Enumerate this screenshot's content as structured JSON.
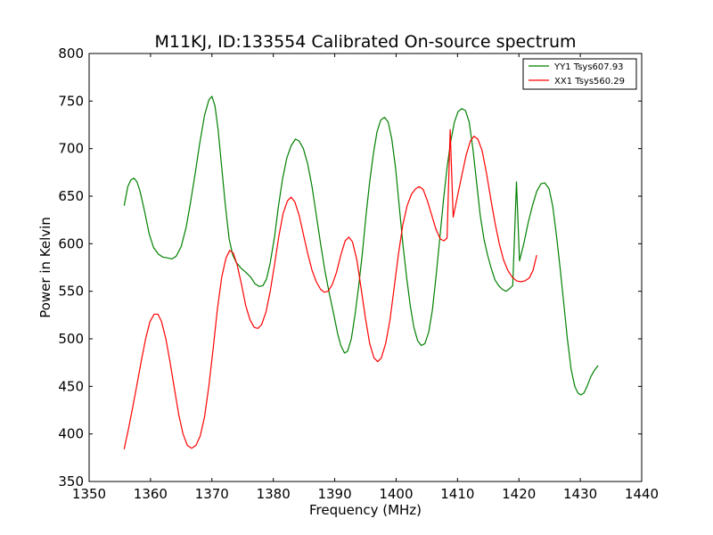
{
  "chart_data": {
    "type": "line",
    "title": "M11KJ, ID:133554 Calibrated On-source spectrum",
    "xlabel": "Frequency (MHz)",
    "ylabel": "Power in Kelvin",
    "xlim": [
      1350,
      1440
    ],
    "ylim": [
      350,
      800
    ],
    "xticks": [
      1350,
      1360,
      1370,
      1380,
      1390,
      1400,
      1410,
      1420,
      1430,
      1440
    ],
    "yticks": [
      350,
      400,
      450,
      500,
      550,
      600,
      650,
      700,
      750,
      800
    ],
    "grid": false,
    "legend_position": "top-right",
    "series": [
      {
        "name": "YY1 Tsys607.93",
        "color": "#008000",
        "points": [
          [
            1355.7,
            640
          ],
          [
            1356.3,
            660
          ],
          [
            1356.8,
            667
          ],
          [
            1357.3,
            669
          ],
          [
            1357.8,
            665
          ],
          [
            1358.3,
            655
          ],
          [
            1359.0,
            635
          ],
          [
            1359.8,
            610
          ],
          [
            1360.5,
            596
          ],
          [
            1361.3,
            589
          ],
          [
            1362.0,
            586
          ],
          [
            1362.8,
            585
          ],
          [
            1363.5,
            584
          ],
          [
            1364.2,
            587
          ],
          [
            1365.0,
            597
          ],
          [
            1365.8,
            617
          ],
          [
            1366.5,
            643
          ],
          [
            1367.3,
            675
          ],
          [
            1368.0,
            705
          ],
          [
            1368.8,
            735
          ],
          [
            1369.5,
            751
          ],
          [
            1370.0,
            755
          ],
          [
            1370.5,
            745
          ],
          [
            1371.0,
            720
          ],
          [
            1371.6,
            680
          ],
          [
            1372.2,
            640
          ],
          [
            1372.8,
            605
          ],
          [
            1373.4,
            588
          ],
          [
            1374.0,
            580
          ],
          [
            1374.8,
            574
          ],
          [
            1375.5,
            570
          ],
          [
            1376.3,
            565
          ],
          [
            1377.0,
            558
          ],
          [
            1377.7,
            555
          ],
          [
            1378.3,
            556
          ],
          [
            1378.9,
            563
          ],
          [
            1379.5,
            580
          ],
          [
            1380.2,
            607
          ],
          [
            1380.8,
            638
          ],
          [
            1381.5,
            668
          ],
          [
            1382.2,
            690
          ],
          [
            1382.9,
            703
          ],
          [
            1383.6,
            710
          ],
          [
            1384.2,
            708
          ],
          [
            1384.9,
            700
          ],
          [
            1385.6,
            684
          ],
          [
            1386.3,
            660
          ],
          [
            1387.0,
            630
          ],
          [
            1387.7,
            600
          ],
          [
            1388.4,
            572
          ],
          [
            1389.1,
            548
          ],
          [
            1389.8,
            527
          ],
          [
            1390.5,
            505
          ],
          [
            1391.0,
            493
          ],
          [
            1391.6,
            485
          ],
          [
            1392.1,
            487
          ],
          [
            1392.7,
            500
          ],
          [
            1393.3,
            525
          ],
          [
            1393.9,
            555
          ],
          [
            1394.5,
            590
          ],
          [
            1395.1,
            630
          ],
          [
            1395.7,
            665
          ],
          [
            1396.3,
            695
          ],
          [
            1396.9,
            718
          ],
          [
            1397.5,
            730
          ],
          [
            1398.1,
            733
          ],
          [
            1398.7,
            728
          ],
          [
            1399.3,
            710
          ],
          [
            1399.9,
            680
          ],
          [
            1400.5,
            640
          ],
          [
            1401.1,
            600
          ],
          [
            1401.7,
            565
          ],
          [
            1402.3,
            535
          ],
          [
            1402.9,
            512
          ],
          [
            1403.5,
            498
          ],
          [
            1404.1,
            493
          ],
          [
            1404.7,
            495
          ],
          [
            1405.3,
            507
          ],
          [
            1405.9,
            530
          ],
          [
            1406.5,
            565
          ],
          [
            1407.1,
            605
          ],
          [
            1407.7,
            645
          ],
          [
            1408.3,
            680
          ],
          [
            1408.9,
            708
          ],
          [
            1409.5,
            728
          ],
          [
            1410.1,
            739
          ],
          [
            1410.7,
            742
          ],
          [
            1411.3,
            740
          ],
          [
            1411.9,
            728
          ],
          [
            1412.5,
            700
          ],
          [
            1413.1,
            665
          ],
          [
            1413.7,
            630
          ],
          [
            1414.3,
            605
          ],
          [
            1414.9,
            588
          ],
          [
            1415.5,
            574
          ],
          [
            1416.1,
            562
          ],
          [
            1416.7,
            556
          ],
          [
            1417.3,
            552
          ],
          [
            1417.9,
            550
          ],
          [
            1418.5,
            553
          ],
          [
            1419.0,
            556
          ],
          [
            1419.6,
            665
          ],
          [
            1420.1,
            582
          ],
          [
            1420.8,
            600
          ],
          [
            1421.5,
            622
          ],
          [
            1422.2,
            640
          ],
          [
            1422.9,
            655
          ],
          [
            1423.6,
            663
          ],
          [
            1424.2,
            664
          ],
          [
            1424.9,
            658
          ],
          [
            1425.5,
            640
          ],
          [
            1426.1,
            610
          ],
          [
            1426.7,
            575
          ],
          [
            1427.3,
            538
          ],
          [
            1427.9,
            500
          ],
          [
            1428.5,
            468
          ],
          [
            1429.1,
            450
          ],
          [
            1429.6,
            443
          ],
          [
            1430.1,
            441
          ],
          [
            1430.6,
            443
          ],
          [
            1431.1,
            450
          ],
          [
            1431.7,
            460
          ],
          [
            1432.3,
            467
          ],
          [
            1432.9,
            472
          ]
        ]
      },
      {
        "name": "XX1 Tsys560.29",
        "color": "#ff0000",
        "points": [
          [
            1355.7,
            384
          ],
          [
            1356.4,
            405
          ],
          [
            1357.1,
            428
          ],
          [
            1357.8,
            452
          ],
          [
            1358.5,
            477
          ],
          [
            1359.2,
            500
          ],
          [
            1359.9,
            518
          ],
          [
            1360.6,
            526
          ],
          [
            1361.2,
            526
          ],
          [
            1361.8,
            518
          ],
          [
            1362.5,
            500
          ],
          [
            1363.2,
            475
          ],
          [
            1363.9,
            447
          ],
          [
            1364.6,
            420
          ],
          [
            1365.3,
            400
          ],
          [
            1366.0,
            388
          ],
          [
            1366.7,
            385
          ],
          [
            1367.4,
            388
          ],
          [
            1368.1,
            398
          ],
          [
            1368.8,
            418
          ],
          [
            1369.5,
            450
          ],
          [
            1370.2,
            490
          ],
          [
            1370.9,
            532
          ],
          [
            1371.6,
            565
          ],
          [
            1372.3,
            585
          ],
          [
            1372.9,
            593
          ],
          [
            1373.5,
            590
          ],
          [
            1374.1,
            578
          ],
          [
            1374.8,
            558
          ],
          [
            1375.5,
            535
          ],
          [
            1376.2,
            520
          ],
          [
            1376.9,
            512
          ],
          [
            1377.5,
            511
          ],
          [
            1378.1,
            515
          ],
          [
            1378.8,
            528
          ],
          [
            1379.5,
            550
          ],
          [
            1380.2,
            578
          ],
          [
            1380.9,
            608
          ],
          [
            1381.6,
            632
          ],
          [
            1382.3,
            645
          ],
          [
            1382.9,
            649
          ],
          [
            1383.5,
            644
          ],
          [
            1384.2,
            630
          ],
          [
            1384.9,
            610
          ],
          [
            1385.6,
            590
          ],
          [
            1386.3,
            572
          ],
          [
            1387.0,
            560
          ],
          [
            1387.7,
            552
          ],
          [
            1388.3,
            549
          ],
          [
            1388.9,
            550
          ],
          [
            1389.6,
            557
          ],
          [
            1390.3,
            570
          ],
          [
            1391.0,
            588
          ],
          [
            1391.7,
            603
          ],
          [
            1392.3,
            607
          ],
          [
            1392.9,
            602
          ],
          [
            1393.6,
            583
          ],
          [
            1394.3,
            553
          ],
          [
            1395.0,
            522
          ],
          [
            1395.7,
            495
          ],
          [
            1396.4,
            480
          ],
          [
            1397.0,
            476
          ],
          [
            1397.6,
            480
          ],
          [
            1398.3,
            495
          ],
          [
            1399.0,
            520
          ],
          [
            1399.7,
            555
          ],
          [
            1400.4,
            590
          ],
          [
            1401.1,
            620
          ],
          [
            1401.8,
            640
          ],
          [
            1402.5,
            652
          ],
          [
            1403.2,
            658
          ],
          [
            1403.8,
            660
          ],
          [
            1404.4,
            657
          ],
          [
            1405.1,
            645
          ],
          [
            1405.8,
            630
          ],
          [
            1406.5,
            615
          ],
          [
            1407.2,
            605
          ],
          [
            1407.8,
            603
          ],
          [
            1408.3,
            606
          ],
          [
            1408.8,
            720
          ],
          [
            1409.3,
            628
          ],
          [
            1410.0,
            650
          ],
          [
            1410.7,
            672
          ],
          [
            1411.4,
            693
          ],
          [
            1412.1,
            708
          ],
          [
            1412.7,
            713
          ],
          [
            1413.3,
            710
          ],
          [
            1414.0,
            698
          ],
          [
            1414.7,
            675
          ],
          [
            1415.4,
            648
          ],
          [
            1416.1,
            622
          ],
          [
            1416.8,
            600
          ],
          [
            1417.5,
            583
          ],
          [
            1418.2,
            572
          ],
          [
            1418.9,
            565
          ],
          [
            1419.6,
            561
          ],
          [
            1420.3,
            560
          ],
          [
            1421.0,
            561
          ],
          [
            1421.7,
            564
          ],
          [
            1422.3,
            572
          ],
          [
            1422.9,
            588
          ]
        ]
      }
    ]
  }
}
